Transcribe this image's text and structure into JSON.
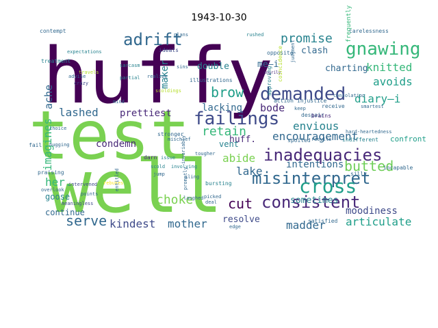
{
  "title": "1943-10-30",
  "colors": {
    "dark_purple": "#440154",
    "purple": "#482878",
    "blue": "#3e4a89",
    "slate": "#31688e",
    "teal": "#26828e",
    "green_teal": "#1f9e89",
    "green": "#35b779",
    "lime": "#6ece58",
    "light_green": "#7ad151",
    "yellow_green": "#b5de2b",
    "yellow": "#fde725"
  },
  "words": [
    {
      "text": "huffy",
      "color": "dark_purple",
      "rotate": 0
    },
    {
      "text": "test",
      "color": "light_green",
      "rotate": 0
    },
    {
      "text": "well",
      "color": "light_green",
      "rotate": 0
    },
    {
      "text": "adrift",
      "color": "slate",
      "rotate": 0
    },
    {
      "text": "gnawing",
      "color": "green",
      "rotate": 0
    },
    {
      "text": "promise",
      "color": "teal",
      "rotate": 0
    },
    {
      "text": "demanded",
      "color": "blue",
      "rotate": 0
    },
    {
      "text": "failings",
      "color": "blue",
      "rotate": 0
    },
    {
      "text": "inadequacies",
      "color": "purple",
      "rotate": 0
    },
    {
      "text": "misinterpret",
      "color": "slate",
      "rotate": 0
    },
    {
      "text": "consistent",
      "color": "purple",
      "rotate": 0
    },
    {
      "text": "cross",
      "color": "green_teal",
      "rotate": 0
    },
    {
      "text": "serve",
      "color": "slate",
      "rotate": 0
    },
    {
      "text": "articulate",
      "color": "green_teal",
      "rotate": 0
    },
    {
      "text": "knitted",
      "color": "green",
      "rotate": 0
    },
    {
      "text": "avoids",
      "color": "green_teal",
      "rotate": 0
    },
    {
      "text": "diary—i",
      "color": "green_teal",
      "rotate": 0
    },
    {
      "text": "encouragement",
      "color": "slate",
      "rotate": 0
    },
    {
      "text": "envious",
      "color": "teal",
      "rotate": 0
    },
    {
      "text": "bode",
      "color": "purple",
      "rotate": 0
    },
    {
      "text": "brow",
      "color": "green_teal",
      "rotate": 0
    },
    {
      "text": "retain",
      "color": "green",
      "rotate": 0
    },
    {
      "text": "lashed",
      "color": "slate",
      "rotate": 0
    },
    {
      "text": "prettiest",
      "color": "purple",
      "rotate": 0
    },
    {
      "text": "imagines",
      "color": "green",
      "rotate": -90
    },
    {
      "text": "ache",
      "color": "slate",
      "rotate": -90
    },
    {
      "text": "lake",
      "color": "slate",
      "rotate": 0
    },
    {
      "text": "cut",
      "color": "dark_purple",
      "rotate": 0
    },
    {
      "text": "abide",
      "color": "light_green",
      "rotate": 0
    },
    {
      "text": "butted",
      "color": "lime",
      "rotate": 0
    },
    {
      "text": "choke",
      "color": "light_green",
      "rotate": 0
    },
    {
      "text": "mother",
      "color": "slate",
      "rotate": 0
    },
    {
      "text": "kindest",
      "color": "blue",
      "rotate": 0
    },
    {
      "text": "madder",
      "color": "slate",
      "rotate": 0
    },
    {
      "text": "her.",
      "color": "green",
      "rotate": 0
    },
    {
      "text": "goose",
      "color": "teal",
      "rotate": 0
    },
    {
      "text": "continue",
      "color": "slate",
      "rotate": 0
    },
    {
      "text": "condemn",
      "color": "purple",
      "rotate": 0
    },
    {
      "text": "resolve",
      "color": "blue",
      "rotate": 0
    },
    {
      "text": "moodiness",
      "color": "blue",
      "rotate": 0
    },
    {
      "text": "sometimes",
      "color": "teal",
      "rotate": 0
    },
    {
      "text": "intentions",
      "color": "slate",
      "rotate": 0
    },
    {
      "text": "confront",
      "color": "green_teal",
      "rotate": 0
    },
    {
      "text": "charting",
      "color": "slate",
      "rotate": 0
    },
    {
      "text": "clash",
      "color": "slate",
      "rotate": 0
    },
    {
      "text": "lacking",
      "color": "slate",
      "rotate": 0
    },
    {
      "text": "double",
      "color": "teal",
      "rotate": 0
    },
    {
      "text": "me—i",
      "color": "slate",
      "rotate": 0
    },
    {
      "text": "huff.",
      "color": "purple",
      "rotate": 0
    },
    {
      "text": "vent",
      "color": "teal",
      "rotate": 0
    },
    {
      "text": "maker",
      "color": "teal",
      "rotate": -90
    },
    {
      "text": "ideals",
      "color": "blue",
      "rotate": 0
    },
    {
      "text": "treatment",
      "color": "teal",
      "rotate": 0
    },
    {
      "text": "expectations",
      "color": "teal",
      "rotate": 0
    },
    {
      "text": "sarcasm",
      "color": "teal",
      "rotate": 0
    },
    {
      "text": "plans",
      "color": "slate",
      "rotate": 0
    },
    {
      "text": "rushed",
      "color": "teal",
      "rotate": 0
    },
    {
      "text": "carelessness",
      "color": "slate",
      "rotate": 0
    },
    {
      "text": "opposite",
      "color": "slate",
      "rotate": 0
    },
    {
      "text": "frequently",
      "color": "green",
      "rotate": -90
    },
    {
      "text": "illustrations",
      "color": "slate",
      "rotate": 0
    },
    {
      "text": "partial",
      "color": "teal",
      "rotate": 0
    },
    {
      "text": "crazy",
      "color": "blue",
      "rotate": 0
    },
    {
      "text": "advise",
      "color": "slate",
      "rotate": 0
    },
    {
      "text": "scoldings",
      "color": "yellow_green",
      "rotate": 0
    },
    {
      "text": "sins",
      "color": "slate",
      "rotate": 0
    },
    {
      "text": "angrily",
      "color": "purple",
      "rotate": 0
    },
    {
      "text": "judgment",
      "color": "slate",
      "rotate": -90
    },
    {
      "text": "injustice",
      "color": "slate",
      "rotate": 0
    },
    {
      "text": "action",
      "color": "slate",
      "rotate": 0
    },
    {
      "text": "consolation",
      "color": "slate",
      "rotate": 0
    },
    {
      "text": "despair",
      "color": "slate",
      "rotate": 0
    },
    {
      "text": "keep",
      "color": "slate",
      "rotate": 0
    },
    {
      "text": "brains",
      "color": "purple",
      "rotate": 0
    },
    {
      "text": "receive",
      "color": "slate",
      "rotate": 0
    },
    {
      "text": "smartest",
      "color": "slate",
      "rotate": 0
    },
    {
      "text": "spoiled",
      "color": "slate",
      "rotate": 0
    },
    {
      "text": "results",
      "color": "slate",
      "rotate": 0
    },
    {
      "text": "indifferent",
      "color": "teal",
      "rotate": 0
    },
    {
      "text": "coincidence",
      "color": "yellow_green",
      "rotate": -90
    },
    {
      "text": "approving",
      "color": "teal",
      "rotate": -90
    },
    {
      "text": "hard-heartedness",
      "color": "slate",
      "rotate": 0
    },
    {
      "text": "darn",
      "color": "purple",
      "rotate": 0
    },
    {
      "text": "choice",
      "color": "slate",
      "rotate": 0
    },
    {
      "text": "hugging",
      "color": "slate",
      "rotate": 0
    },
    {
      "text": "fail",
      "color": "slate",
      "rotate": 0
    },
    {
      "text": "scold",
      "color": "teal",
      "rotate": 0
    },
    {
      "text": "jump",
      "color": "slate",
      "rotate": 0
    },
    {
      "text": "issue",
      "color": "teal",
      "rotate": 0
    },
    {
      "text": "praising",
      "color": "slate",
      "rotate": 0
    },
    {
      "text": "involving",
      "color": "teal",
      "rotate": 0
    },
    {
      "text": "cling",
      "color": "slate",
      "rotate": 0
    },
    {
      "text": "bursting",
      "color": "teal",
      "rotate": 0
    },
    {
      "text": "overlook",
      "color": "slate",
      "rotate": 0
    },
    {
      "text": "meaningless",
      "color": "blue",
      "rotate": 0
    },
    {
      "text": "intervened",
      "color": "blue",
      "rotate": 0
    },
    {
      "text": "points",
      "color": "slate",
      "rotate": 0
    },
    {
      "text": "laughed",
      "color": "slate",
      "rotate": 0
    },
    {
      "text": "tougher",
      "color": "slate",
      "rotate": 0
    },
    {
      "text": "picked",
      "color": "slate",
      "rotate": 0
    },
    {
      "text": "deal",
      "color": "slate",
      "rotate": 0
    },
    {
      "text": "mischief",
      "color": "slate",
      "rotate": 0
    },
    {
      "text": "incapable",
      "color": "slate",
      "rotate": 0
    },
    {
      "text": "silly",
      "color": "slate",
      "rotate": 0
    },
    {
      "text": "satisfied",
      "color": "slate",
      "rotate": 0
    },
    {
      "text": "edge",
      "color": "slate",
      "rotate": 0
    },
    {
      "text": "rebukes",
      "color": "yellow",
      "rotate": 0
    },
    {
      "text": "entitled",
      "color": "slate",
      "rotate": -90
    },
    {
      "text": "invariably",
      "color": "slate",
      "rotate": -90
    },
    {
      "text": "stronger",
      "color": "slate",
      "rotate": 0
    },
    {
      "text": "mind",
      "color": "slate",
      "rotate": 0
    },
    {
      "text": "promptly",
      "color": "slate",
      "rotate": -90
    },
    {
      "text": "contempt",
      "color": "slate",
      "rotate": 0
    },
    {
      "text": "travels",
      "color": "yellow_green",
      "rotate": 0
    },
    {
      "text": "realize",
      "color": "slate",
      "rotate": 0
    },
    {
      "text": "picture",
      "color": "slate",
      "rotate": 0
    }
  ]
}
